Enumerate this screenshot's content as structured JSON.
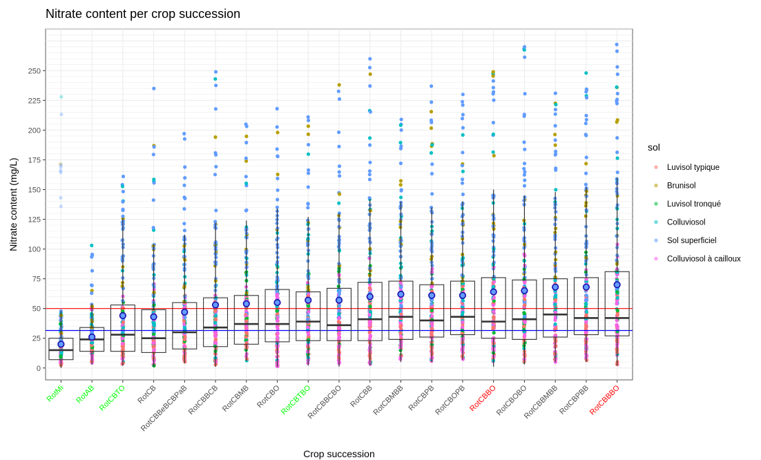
{
  "chart_data": {
    "type": "boxplot",
    "title": "Nitrate content per crop succession",
    "xlabel": "Crop succession",
    "ylabel": "Nitrate content (mg/L)",
    "ylim": [
      -10,
      285
    ],
    "yticks": [
      0,
      25,
      50,
      75,
      100,
      125,
      150,
      175,
      200,
      225,
      250
    ],
    "grid": true,
    "legend_position": "right",
    "legend_title": "sol",
    "legend": [
      {
        "label": "Luvisol typique",
        "color": "#F8766D"
      },
      {
        "label": "Brunisol",
        "color": "#B79F00"
      },
      {
        "label": "Luvisol tronqué",
        "color": "#00BA38"
      },
      {
        "label": "Colluviosol",
        "color": "#00BFC4"
      },
      {
        "label": "Sol superficiel",
        "color": "#619CFF"
      },
      {
        "label": "Colluviosol à cailloux",
        "color": "#F564E3"
      }
    ],
    "reference_lines": [
      {
        "value": 50,
        "color": "#FF0000"
      },
      {
        "value": 31.5,
        "color": "#0000FF"
      }
    ],
    "categories": [
      "RotMi",
      "RotAB",
      "RotCBTO",
      "RotCB",
      "RotCBBeBCBPaB",
      "RotCBBCB",
      "RotCBMB",
      "RotCBO",
      "RotCBTBO",
      "RotCBBCBO",
      "RotCBB",
      "RotCBMBB",
      "RotCBPB",
      "RotCBOPB",
      "RotCBBO",
      "RotCBOBO",
      "RotCBBMBB",
      "RotCBPBB",
      "RotCBBBO"
    ],
    "category_colors": [
      "#00FF00",
      "#00FF00",
      "#00FF00",
      "#4d4d4d",
      "#4d4d4d",
      "#4d4d4d",
      "#4d4d4d",
      "#4d4d4d",
      "#00FF00",
      "#4d4d4d",
      "#4d4d4d",
      "#4d4d4d",
      "#4d4d4d",
      "#4d4d4d",
      "#FF0000",
      "#4d4d4d",
      "#4d4d4d",
      "#4d4d4d",
      "#FF0000"
    ],
    "boxes": [
      {
        "q1": 7,
        "median": 15,
        "q3": 25,
        "low": 0,
        "high": 48,
        "mean": 20,
        "max": 228
      },
      {
        "q1": 14,
        "median": 24,
        "q3": 34,
        "low": 3,
        "high": 54,
        "mean": 26,
        "max": 103
      },
      {
        "q1": 14,
        "median": 28,
        "q3": 53,
        "low": 2,
        "high": 126,
        "mean": 44,
        "max": 161
      },
      {
        "q1": 13,
        "median": 25,
        "q3": 49,
        "low": 1,
        "high": 104,
        "mean": 43,
        "max": 235
      },
      {
        "q1": 16,
        "median": 30,
        "q3": 55,
        "low": 4,
        "high": 112,
        "mean": 47,
        "max": 197
      },
      {
        "q1": 18,
        "median": 34,
        "q3": 59,
        "low": 1,
        "high": 122,
        "mean": 53,
        "max": 249
      },
      {
        "q1": 20,
        "median": 37,
        "q3": 61,
        "low": 6,
        "high": 124,
        "mean": 54,
        "max": 205
      },
      {
        "q1": 22,
        "median": 37,
        "q3": 66,
        "low": 1,
        "high": 134,
        "mean": 55,
        "max": 218
      },
      {
        "q1": 23,
        "median": 39,
        "q3": 64,
        "low": 2,
        "high": 127,
        "mean": 57,
        "max": 211
      },
      {
        "q1": 23,
        "median": 36,
        "q3": 67,
        "low": 1,
        "high": 130,
        "mean": 57,
        "max": 238
      },
      {
        "q1": 23,
        "median": 41,
        "q3": 72,
        "low": 2,
        "high": 142,
        "mean": 60,
        "max": 260
      },
      {
        "q1": 24,
        "median": 43,
        "q3": 73,
        "low": 5,
        "high": 140,
        "mean": 62,
        "max": 209
      },
      {
        "q1": 26,
        "median": 40,
        "q3": 70,
        "low": 5,
        "high": 135,
        "mean": 61,
        "max": 237
      },
      {
        "q1": 28,
        "median": 43,
        "q3": 73,
        "low": 7,
        "high": 140,
        "mean": 61,
        "max": 230
      },
      {
        "q1": 25,
        "median": 39,
        "q3": 76,
        "low": 1,
        "high": 150,
        "mean": 64,
        "max": 249
      },
      {
        "q1": 24,
        "median": 41,
        "q3": 74,
        "low": 3,
        "high": 145,
        "mean": 65,
        "max": 270
      },
      {
        "q1": 26,
        "median": 45,
        "q3": 75,
        "low": 5,
        "high": 148,
        "mean": 68,
        "max": 231
      },
      {
        "q1": 28,
        "median": 42,
        "q3": 76,
        "low": 5,
        "high": 152,
        "mean": 68,
        "max": 248
      },
      {
        "q1": 27,
        "median": 42,
        "q3": 81,
        "low": 2,
        "high": 160,
        "mean": 70,
        "max": 272
      }
    ]
  }
}
